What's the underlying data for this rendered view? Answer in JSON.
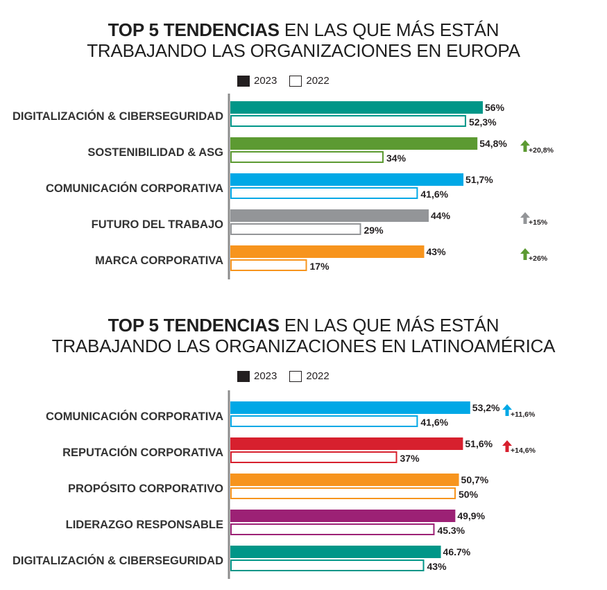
{
  "chart_data": [
    {
      "type": "bar",
      "title_bold": "TOP 5 TENDENCIAS",
      "title_rest": " EN LAS QUE MÁS ESTÁN",
      "title_line2": "TRABAJANDO LAS ORGANIZACIONES EN EUROPA",
      "legend": [
        "2023",
        "2022"
      ],
      "categories": [
        "DIGITALIZACIÓN & CIBERSEGURIDAD",
        "SOSTENIBILIDAD & ASG",
        "COMUNICACIÓN CORPORATIVA",
        "FUTURO DEL TRABAJO",
        "MARCA CORPORATIVA"
      ],
      "colors": [
        "#009688",
        "#5c9a32",
        "#00a8e6",
        "#939598",
        "#f7941d"
      ],
      "series": [
        {
          "name": "2023",
          "values": [
            56,
            54.8,
            51.7,
            44,
            43
          ],
          "labels": [
            "56%",
            "54,8%",
            "51,7%",
            "44%",
            "43%"
          ]
        },
        {
          "name": "2022",
          "values": [
            52.3,
            34,
            41.6,
            29,
            17
          ],
          "labels": [
            "52,3%",
            "34%",
            "41,6%",
            "29%",
            "17%"
          ]
        }
      ],
      "deltas": [
        null,
        {
          "text": "+20,8%",
          "color": "#5c9a32"
        },
        null,
        {
          "text": "+15%",
          "color": "#939598"
        },
        {
          "text": "+26%",
          "color": "#5c9a32"
        }
      ]
    },
    {
      "type": "bar",
      "title_bold": "TOP 5 TENDENCIAS",
      "title_rest": " EN LAS QUE MÁS ESTÁN",
      "title_line2": "TRABAJANDO LAS ORGANIZACIONES EN LATINOAMÉRICA",
      "legend": [
        "2023",
        "2022"
      ],
      "categories": [
        "COMUNICACIÓN CORPORATIVA",
        "REPUTACIÓN CORPORATIVA",
        "PROPÓSITO CORPORATIVO",
        "LIDERAZGO RESPONSABLE",
        "DIGITALIZACIÓN & CIBERSEGURIDAD"
      ],
      "colors": [
        "#00a8e6",
        "#d7202e",
        "#f7941d",
        "#9c2175",
        "#009688"
      ],
      "series": [
        {
          "name": "2023",
          "values": [
            53.2,
            51.6,
            50.7,
            49.9,
            46.7
          ],
          "labels": [
            "53,2%",
            "51,6%",
            "50,7%",
            "49,9%",
            "46.7%"
          ]
        },
        {
          "name": "2022",
          "values": [
            41.6,
            37,
            50,
            45.3,
            43
          ],
          "labels": [
            "41,6%",
            "37%",
            "50%",
            "45.3%",
            "43%"
          ]
        }
      ],
      "deltas": [
        {
          "text": "+11,6%",
          "color": "#00a8e6"
        },
        {
          "text": "+14,6%",
          "color": "#d7202e"
        },
        null,
        null,
        null
      ]
    }
  ]
}
